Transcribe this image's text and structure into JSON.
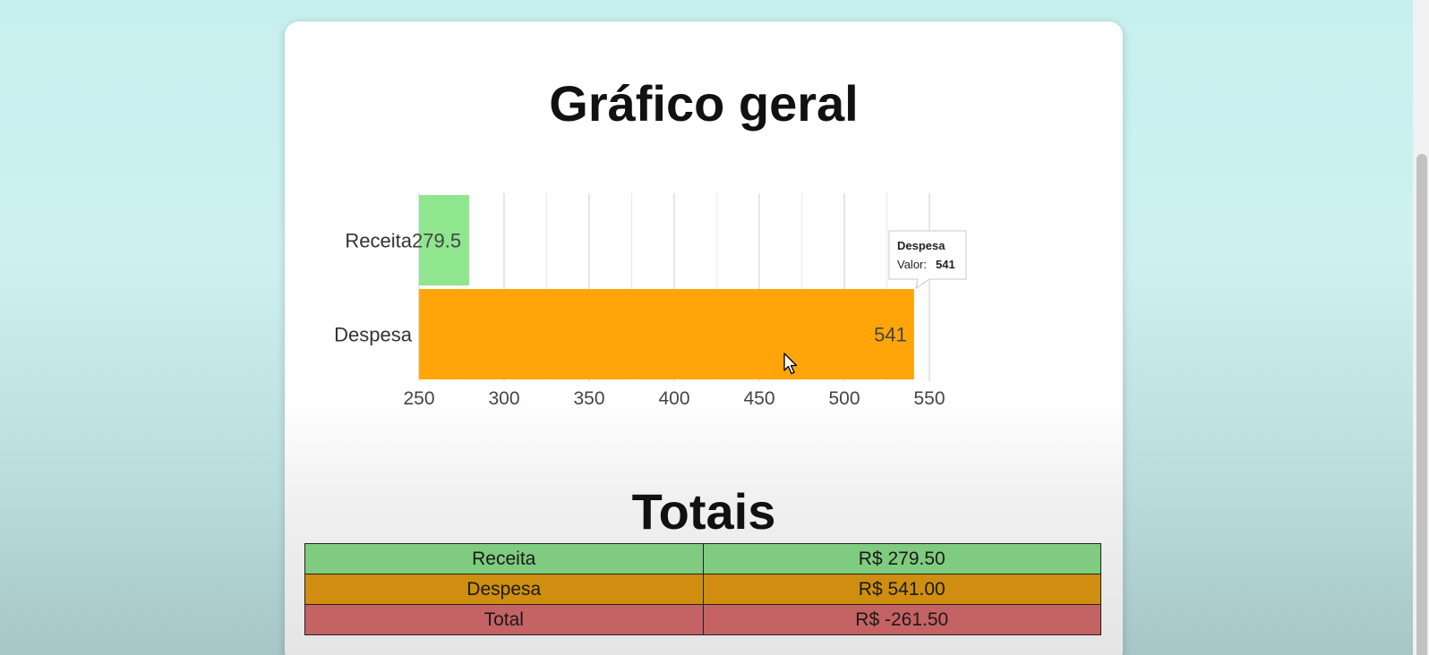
{
  "title": "Gráfico geral",
  "chart_data": {
    "type": "bar",
    "orientation": "horizontal",
    "categories": [
      "Receita",
      "Despesa"
    ],
    "values": [
      279.5,
      541
    ],
    "data_labels": [
      "279.5",
      "541"
    ],
    "colors": [
      "#8fe68f",
      "#ffa50a"
    ],
    "xlim": [
      250,
      550
    ],
    "xticks": [
      250,
      300,
      350,
      400,
      450,
      500,
      550
    ],
    "grid": true,
    "tooltip": {
      "title": "Despesa",
      "label": "Valor:",
      "value": "541"
    }
  },
  "totals": {
    "title": "Totais",
    "rows": [
      {
        "label": "Receita",
        "value": "R$ 279.50",
        "color": "#7fcb7f"
      },
      {
        "label": "Despesa",
        "value": "R$ 541.00",
        "color": "#cf8e0f"
      },
      {
        "label": "Total",
        "value": "R$ -261.50",
        "color": "#c56263"
      }
    ]
  }
}
